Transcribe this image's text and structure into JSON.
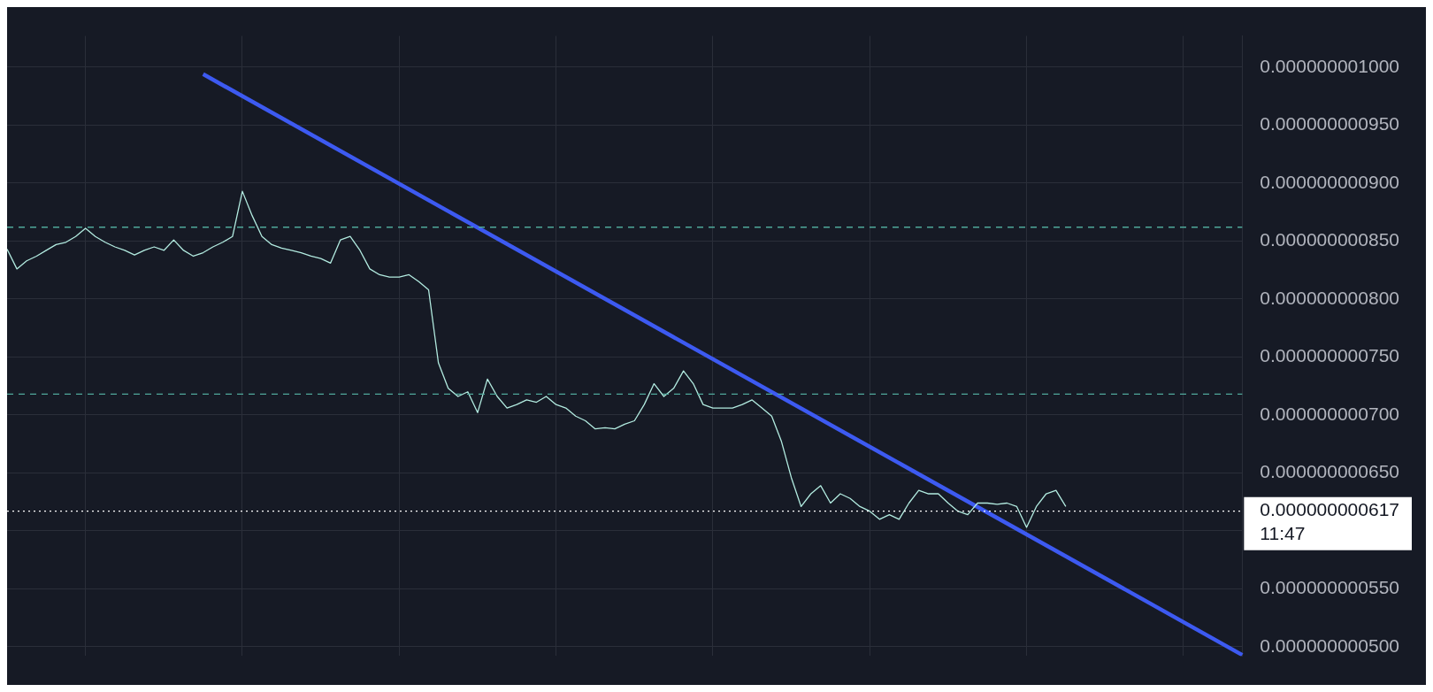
{
  "chart_data": {
    "type": "line",
    "categories": [
      null,
      null,
      null,
      null,
      null,
      null,
      null,
      null,
      null,
      null,
      null,
      null,
      null,
      null,
      null,
      null,
      null,
      null,
      null,
      null,
      null,
      null,
      null,
      null,
      null,
      null,
      null,
      null,
      null,
      null,
      null,
      null,
      null,
      null,
      null,
      null,
      null,
      null,
      null,
      null,
      null,
      null,
      null,
      null,
      null,
      null,
      null,
      null,
      null,
      null,
      null,
      null,
      null,
      null,
      null,
      null,
      null,
      null,
      null,
      null,
      null,
      null,
      null,
      null,
      null,
      null,
      null,
      null,
      null,
      null,
      null,
      null,
      null,
      null,
      null,
      null,
      null,
      null,
      null,
      null,
      null,
      null,
      null,
      null,
      null,
      null,
      null,
      null,
      null,
      null,
      null,
      null,
      null,
      null,
      null,
      null,
      null,
      null,
      null,
      null,
      null,
      null,
      null,
      null,
      null,
      null,
      null,
      null,
      null,
      null,
      null,
      null,
      null,
      null,
      null,
      null,
      null,
      null,
      null,
      null,
      null,
      null,
      null,
      null,
      null,
      null,
      null
    ],
    "series": [
      {
        "type": "line",
        "color": "#b2ebe0",
        "values": [
          8.43e-10,
          8.26e-10,
          8.33e-10,
          8.37e-10,
          8.42e-10,
          8.47e-10,
          8.49e-10,
          8.54e-10,
          8.61e-10,
          8.54e-10,
          8.49e-10,
          8.45e-10,
          8.42e-10,
          8.38e-10,
          8.42e-10,
          8.45e-10,
          8.42e-10,
          8.51e-10,
          8.42e-10,
          8.37e-10,
          8.4e-10,
          8.45e-10,
          8.49e-10,
          8.54e-10,
          8.93e-10,
          8.72e-10,
          8.54e-10,
          8.47e-10,
          8.44e-10,
          8.42e-10,
          8.4e-10,
          8.37e-10,
          8.35e-10,
          8.31e-10,
          8.51e-10,
          8.54e-10,
          8.42e-10,
          8.26e-10,
          8.21e-10,
          8.19e-10,
          8.19e-10,
          8.21e-10,
          8.15e-10,
          8.08e-10,
          7.45e-10,
          7.23e-10,
          7.16e-10,
          7.2e-10,
          7.02e-10,
          7.31e-10,
          7.16e-10,
          7.06e-10,
          7.09e-10,
          7.13e-10,
          7.11e-10,
          7.16e-10,
          7.09e-10,
          7.06e-10,
          6.99e-10,
          6.95e-10,
          6.88e-10,
          6.89e-10,
          6.88e-10,
          6.92e-10,
          6.95e-10,
          7.09e-10,
          7.27e-10,
          7.16e-10,
          7.23e-10,
          7.38e-10,
          7.27e-10,
          7.09e-10,
          7.06e-10,
          7.06e-10,
          7.06e-10,
          7.09e-10,
          7.13e-10,
          7.06e-10,
          6.99e-10,
          6.77e-10,
          6.46e-10,
          6.21e-10,
          6.32e-10,
          6.39e-10,
          6.24e-10,
          6.32e-10,
          6.28e-10,
          6.21e-10,
          6.17e-10,
          6.1e-10,
          6.14e-10,
          6.1e-10,
          6.24e-10,
          6.35e-10,
          6.32e-10,
          6.32e-10,
          6.24e-10,
          6.17e-10,
          6.14e-10,
          6.24e-10,
          6.24e-10,
          6.23e-10,
          6.24e-10,
          6.21e-10,
          6.03e-10,
          6.21e-10,
          6.32e-10,
          6.35e-10,
          6.21e-10,
          null,
          null,
          null,
          null,
          null,
          null,
          null,
          null,
          null,
          null,
          null,
          null,
          null,
          null,
          null,
          null,
          null,
          null
        ]
      },
      {
        "type": "line",
        "color": "#3d5af1",
        "values": [
          null,
          null,
          null,
          null,
          null,
          null,
          null,
          null,
          null,
          null,
          null,
          null,
          null,
          null,
          null,
          null,
          null,
          null,
          null,
          null,
          9.94e-10,
          null,
          null,
          null,
          null,
          null,
          null,
          null,
          null,
          null,
          null,
          null,
          null,
          null,
          null,
          null,
          null,
          null,
          null,
          null,
          null,
          null,
          null,
          null,
          null,
          null,
          null,
          null,
          null,
          null,
          null,
          null,
          null,
          null,
          null,
          null,
          null,
          null,
          null,
          null,
          null,
          null,
          null,
          null,
          null,
          null,
          null,
          null,
          null,
          null,
          null,
          null,
          null,
          null,
          null,
          null,
          null,
          null,
          null,
          null,
          null,
          null,
          null,
          null,
          null,
          null,
          null,
          null,
          null,
          null,
          null,
          null,
          null,
          null,
          null,
          null,
          null,
          null,
          null,
          null,
          null,
          null,
          null,
          null,
          null,
          null,
          null,
          null,
          null,
          null,
          null,
          null,
          null,
          null,
          null,
          null,
          null,
          null,
          null,
          null,
          null,
          null,
          null,
          null,
          null,
          null,
          4.93e-10
        ]
      }
    ],
    "ylim": [
      4.92e-10,
      1.027e-09
    ],
    "yticks": [
      {
        "value": 5e-10,
        "label": "0.000000000500"
      },
      {
        "value": 5.5e-10,
        "label": "0.000000000550"
      },
      {
        "value": 6e-10,
        "label": null
      },
      {
        "value": 6.5e-10,
        "label": "0.000000000650"
      },
      {
        "value": 7e-10,
        "label": "0.000000000700"
      },
      {
        "value": 7.5e-10,
        "label": "0.000000000750"
      },
      {
        "value": 8e-10,
        "label": "0.000000000800"
      },
      {
        "value": 8.5e-10,
        "label": "0.000000000850"
      },
      {
        "value": 9e-10,
        "label": "0.000000000900"
      },
      {
        "value": 9.5e-10,
        "label": "0.000000000950"
      },
      {
        "value": 1e-09,
        "label": "0.000000001000"
      }
    ],
    "ref_lines": [
      {
        "axis": "y",
        "value": 8.62e-10,
        "color": "#4fa89a",
        "line_style": "dashed"
      },
      {
        "axis": "y",
        "value": 7.18e-10,
        "color": "#4fa89a",
        "line_style": "dashed"
      },
      {
        "axis": "y",
        "value": 6.17e-10,
        "label": "0.000000000617",
        "color": "#ffffff",
        "line_style": "dotted"
      }
    ],
    "annotations": [
      "11:47"
    ],
    "grid": true,
    "legend": false,
    "tick_labels": "y"
  }
}
